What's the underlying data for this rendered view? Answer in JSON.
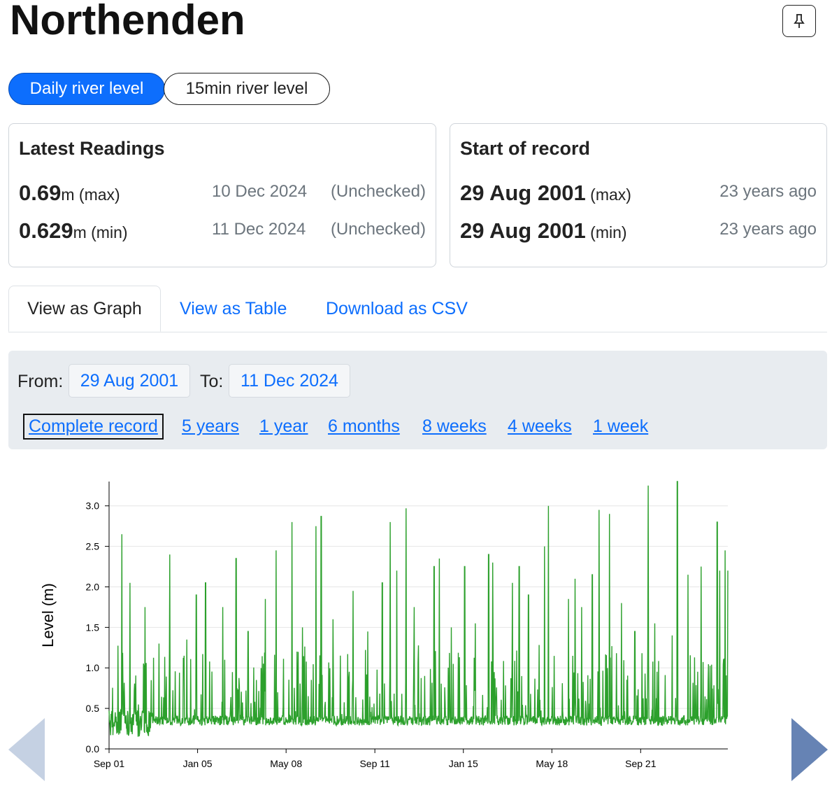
{
  "page": {
    "title": "Northenden"
  },
  "toggles": {
    "daily": "Daily river level",
    "fifteen": "15min river level"
  },
  "latest": {
    "heading": "Latest Readings",
    "max": {
      "value": "0.69",
      "unit": "m",
      "kind": "(max)",
      "date": "10 Dec 2024",
      "status": "(Unchecked)"
    },
    "min": {
      "value": "0.629",
      "unit": "m",
      "kind": "(min)",
      "date": "11 Dec 2024",
      "status": "(Unchecked)"
    }
  },
  "start": {
    "heading": "Start of record",
    "max": {
      "date": "29 Aug 2001",
      "kind": "(max)",
      "ago": "23 years ago"
    },
    "min": {
      "date": "29 Aug 2001",
      "kind": "(min)",
      "ago": "23 years ago"
    }
  },
  "tabs": {
    "graph": "View as Graph",
    "table": "View as Table",
    "csv": "Download as CSV"
  },
  "filter": {
    "from_label": "From:",
    "from_value": "29 Aug 2001",
    "to_label": "To:",
    "to_value": "11 Dec 2024",
    "ranges": [
      "Complete record",
      "5 years",
      "1 year",
      "6 months",
      "8 weeks",
      "4 weeks",
      "1 week"
    ]
  },
  "colors": {
    "accent": "#0d6efd",
    "series": "#2ca02c",
    "arrow_left": "#c5d1e3",
    "arrow_right": "#6683b4"
  },
  "chart_data": {
    "type": "line",
    "title": "",
    "xlabel": "",
    "ylabel": "Level (m)",
    "ylim": [
      0,
      3.3
    ],
    "yticks": [
      "0.0",
      "0.5",
      "1.0",
      "1.5",
      "2.0",
      "2.5",
      "3.0"
    ],
    "xticks": [
      "Sep 01",
      "Jan 05",
      "May 08",
      "Sep 11",
      "Jan 15",
      "May 18",
      "Sep 21"
    ],
    "x_range": [
      2001.67,
      2024.95
    ],
    "grid": true,
    "series": [
      {
        "baseline_level": 0.35,
        "peaks": [
          {
            "t": 2002.15,
            "v": 2.65
          },
          {
            "t": 2002.45,
            "v": 2.05
          },
          {
            "t": 2003.02,
            "v": 1.75
          },
          {
            "t": 2003.55,
            "v": 1.3
          },
          {
            "t": 2003.95,
            "v": 2.4
          },
          {
            "t": 2004.6,
            "v": 1.35
          },
          {
            "t": 2004.95,
            "v": 1.9
          },
          {
            "t": 2005.3,
            "v": 2.05
          },
          {
            "t": 2005.95,
            "v": 1.75
          },
          {
            "t": 2006.45,
            "v": 2.35
          },
          {
            "t": 2006.9,
            "v": 1.45
          },
          {
            "t": 2007.55,
            "v": 1.85
          },
          {
            "t": 2007.95,
            "v": 2.45
          },
          {
            "t": 2008.55,
            "v": 2.8
          },
          {
            "t": 2008.95,
            "v": 1.5
          },
          {
            "t": 2009.45,
            "v": 2.75
          },
          {
            "t": 2009.65,
            "v": 2.87
          },
          {
            "t": 2010.1,
            "v": 1.6
          },
          {
            "t": 2010.85,
            "v": 1.95
          },
          {
            "t": 2011.4,
            "v": 1.45
          },
          {
            "t": 2011.95,
            "v": 2.05
          },
          {
            "t": 2012.25,
            "v": 2.8
          },
          {
            "t": 2012.5,
            "v": 2.2
          },
          {
            "t": 2012.85,
            "v": 2.97
          },
          {
            "t": 2013.15,
            "v": 1.75
          },
          {
            "t": 2013.9,
            "v": 2.25
          },
          {
            "t": 2014.1,
            "v": 2.35
          },
          {
            "t": 2014.55,
            "v": 1.5
          },
          {
            "t": 2015.05,
            "v": 2.25
          },
          {
            "t": 2015.45,
            "v": 1.55
          },
          {
            "t": 2015.95,
            "v": 2.4
          },
          {
            "t": 2016.1,
            "v": 2.3
          },
          {
            "t": 2016.85,
            "v": 2.05
          },
          {
            "t": 2017.1,
            "v": 2.25
          },
          {
            "t": 2017.45,
            "v": 1.9
          },
          {
            "t": 2018.05,
            "v": 2.5
          },
          {
            "t": 2018.2,
            "v": 3.0
          },
          {
            "t": 2018.95,
            "v": 1.85
          },
          {
            "t": 2019.2,
            "v": 2.1
          },
          {
            "t": 2019.45,
            "v": 1.75
          },
          {
            "t": 2019.85,
            "v": 2.15
          },
          {
            "t": 2020.1,
            "v": 2.95
          },
          {
            "t": 2020.5,
            "v": 2.9
          },
          {
            "t": 2020.95,
            "v": 1.8
          },
          {
            "t": 2021.45,
            "v": 1.45
          },
          {
            "t": 2021.95,
            "v": 3.25
          },
          {
            "t": 2022.2,
            "v": 1.55
          },
          {
            "t": 2022.85,
            "v": 1.4
          },
          {
            "t": 2023.05,
            "v": 3.3
          },
          {
            "t": 2023.45,
            "v": 2.15
          },
          {
            "t": 2023.95,
            "v": 2.25
          },
          {
            "t": 2024.55,
            "v": 2.8
          },
          {
            "t": 2024.65,
            "v": 2.2
          },
          {
            "t": 2024.85,
            "v": 2.45
          },
          {
            "t": 2024.95,
            "v": 2.2
          }
        ]
      }
    ]
  }
}
